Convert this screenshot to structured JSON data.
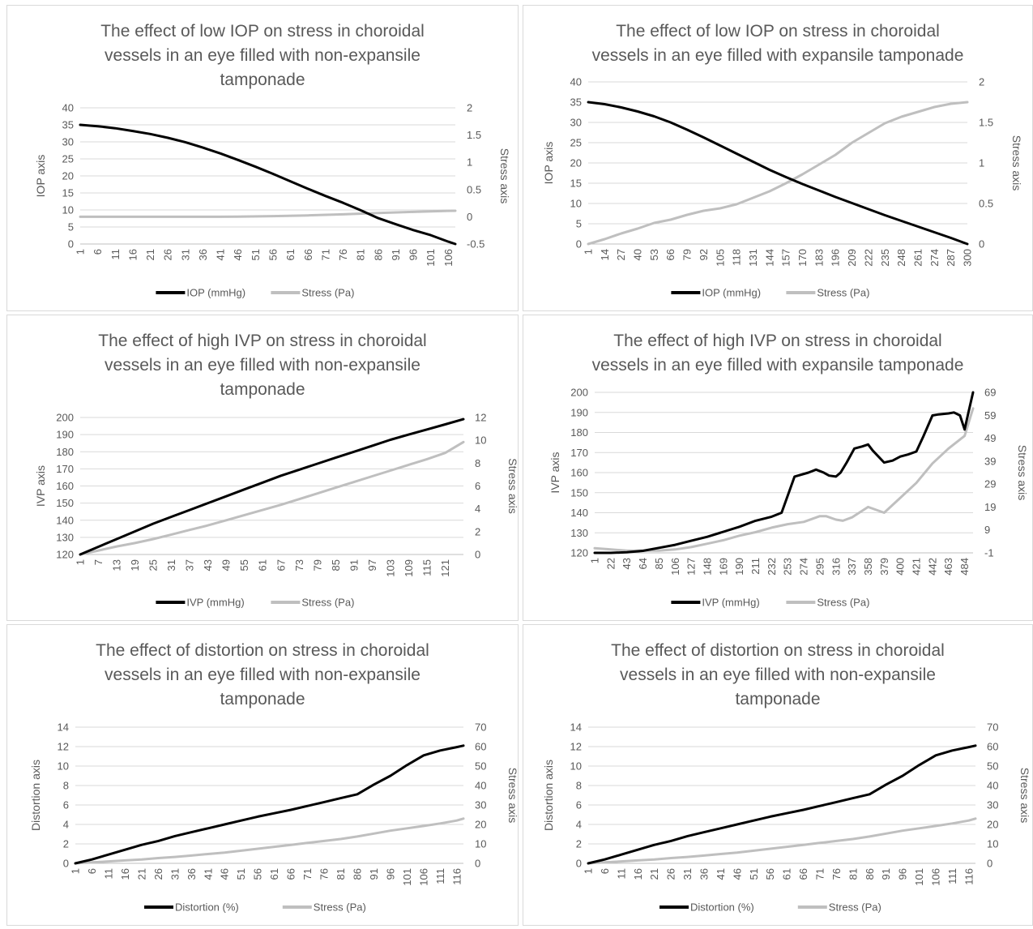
{
  "colors": {
    "series1": "#000000",
    "series2": "#bfbfbf",
    "text": "#595959",
    "grid": "#d9d9d9"
  },
  "chart_data": [
    {
      "type": "line",
      "title": [
        "The effect of low IOP on stress in choroidal",
        "vessels in an eye filled with non-expansile",
        "tamponade"
      ],
      "ylabel": "IOP axis",
      "y2label": "Stress axis",
      "ylim": [
        0,
        40
      ],
      "yticks": [
        "0",
        "5",
        "10",
        "15",
        "20",
        "25",
        "30",
        "35",
        "40"
      ],
      "y2lim": [
        -0.5,
        2
      ],
      "y2ticks": [
        "-0.5",
        "0",
        "0.5",
        "1",
        "1.5",
        "2"
      ],
      "xlim": [
        1,
        108
      ],
      "xticks": [
        "1",
        "6",
        "11",
        "16",
        "21",
        "26",
        "31",
        "36",
        "41",
        "46",
        "51",
        "56",
        "61",
        "66",
        "71",
        "76",
        "81",
        "86",
        "91",
        "96",
        "101",
        "106"
      ],
      "grid": true,
      "legend": "bottom",
      "series": [
        {
          "name": "IOP (mmHg)",
          "axis": "left",
          "x": [
            1,
            6,
            11,
            16,
            21,
            26,
            31,
            36,
            41,
            46,
            51,
            56,
            61,
            66,
            71,
            76,
            81,
            86,
            91,
            96,
            101,
            106,
            108
          ],
          "y": [
            35,
            34.6,
            34,
            33.2,
            32.3,
            31.2,
            29.9,
            28.3,
            26.6,
            24.7,
            22.7,
            20.6,
            18.4,
            16.2,
            14.1,
            12.1,
            9.9,
            7.6,
            5.8,
            4.1,
            2.6,
            0.7,
            0
          ]
        },
        {
          "name": "Stress (Pa)",
          "axis": "right",
          "x": [
            1,
            21,
            41,
            46,
            56,
            66,
            76,
            86,
            96,
            106,
            108
          ],
          "y": [
            0,
            0,
            0,
            0.003,
            0.012,
            0.025,
            0.045,
            0.07,
            0.09,
            0.108,
            0.11
          ]
        }
      ]
    },
    {
      "type": "line",
      "title": [
        "The effect of low IOP on stress in choroidal",
        "vessels in an eye filled with expansile tamponade"
      ],
      "ylabel": "IOP axis",
      "y2label": "Stress axis",
      "ylim": [
        0,
        40
      ],
      "yticks": [
        "0",
        "5",
        "10",
        "15",
        "20",
        "25",
        "30",
        "35",
        "40"
      ],
      "y2lim": [
        0,
        2
      ],
      "y2ticks": [
        "0",
        "0.5",
        "1",
        "1.5",
        "2"
      ],
      "xlim": [
        1,
        300
      ],
      "xticks": [
        "1",
        "14",
        "27",
        "40",
        "53",
        "66",
        "79",
        "92",
        "105",
        "118",
        "131",
        "144",
        "157",
        "170",
        "183",
        "196",
        "209",
        "222",
        "235",
        "248",
        "261",
        "274",
        "287",
        "300"
      ],
      "grid": true,
      "legend": "bottom",
      "series": [
        {
          "name": "IOP (mmHg)",
          "axis": "left",
          "x": [
            1,
            14,
            27,
            40,
            53,
            66,
            79,
            92,
            105,
            118,
            131,
            144,
            157,
            170,
            183,
            196,
            209,
            222,
            235,
            248,
            261,
            274,
            287,
            300
          ],
          "y": [
            35,
            34.5,
            33.7,
            32.7,
            31.5,
            30,
            28.2,
            26.3,
            24.3,
            22.3,
            20.3,
            18.3,
            16.5,
            14.8,
            13.2,
            11.6,
            10.1,
            8.6,
            7.1,
            5.7,
            4.3,
            2.9,
            1.5,
            0
          ]
        },
        {
          "name": "Stress (Pa)",
          "axis": "right",
          "x": [
            1,
            14,
            27,
            40,
            53,
            66,
            79,
            92,
            105,
            118,
            131,
            144,
            157,
            170,
            183,
            196,
            209,
            222,
            235,
            248,
            261,
            274,
            287,
            300
          ],
          "y": [
            0,
            0.06,
            0.13,
            0.19,
            0.26,
            0.3,
            0.36,
            0.41,
            0.44,
            0.49,
            0.57,
            0.65,
            0.75,
            0.86,
            0.98,
            1.1,
            1.25,
            1.37,
            1.49,
            1.57,
            1.63,
            1.69,
            1.73,
            1.75
          ]
        }
      ]
    },
    {
      "type": "line",
      "title": [
        "The effect of high IVP on stress in choroidal",
        "vessels in an eye filled with non-expansile",
        "tamponade"
      ],
      "ylabel": "IVP axis",
      "y2label": "Stress axis",
      "ylim": [
        120,
        200
      ],
      "yticks": [
        "120",
        "130",
        "140",
        "150",
        "160",
        "170",
        "180",
        "190",
        "200"
      ],
      "y2lim": [
        0,
        12
      ],
      "y2ticks": [
        "0",
        "2",
        "4",
        "6",
        "8",
        "10",
        "12"
      ],
      "xlim": [
        1,
        127
      ],
      "xticks": [
        "1",
        "7",
        "13",
        "19",
        "25",
        "31",
        "37",
        "43",
        "49",
        "55",
        "61",
        "67",
        "73",
        "79",
        "85",
        "91",
        "97",
        "103",
        "109",
        "115",
        "121"
      ],
      "grid": true,
      "legend": "bottom",
      "series": [
        {
          "name": "IVP (mmHg)",
          "axis": "left",
          "x": [
            1,
            7,
            13,
            19,
            25,
            31,
            37,
            43,
            49,
            55,
            61,
            67,
            73,
            79,
            85,
            91,
            97,
            103,
            109,
            115,
            121,
            127
          ],
          "y": [
            120,
            124.5,
            129,
            133.5,
            138,
            142,
            146,
            150,
            154,
            158,
            162,
            166,
            169.5,
            173,
            176.5,
            180,
            183.5,
            187,
            190,
            193,
            196,
            199
          ]
        },
        {
          "name": "Stress (Pa)",
          "axis": "right",
          "x": [
            1,
            7,
            13,
            19,
            25,
            31,
            37,
            43,
            49,
            55,
            61,
            67,
            73,
            79,
            85,
            91,
            97,
            103,
            109,
            115,
            121,
            127
          ],
          "y": [
            0,
            0.35,
            0.7,
            1,
            1.35,
            1.75,
            2.15,
            2.55,
            3,
            3.45,
            3.9,
            4.35,
            4.85,
            5.35,
            5.85,
            6.35,
            6.85,
            7.35,
            7.85,
            8.35,
            8.9,
            9.85
          ]
        }
      ]
    },
    {
      "type": "line",
      "title": [
        "The effect of high IVP on stress in choroidal",
        "vessels in an eye filled with expansile tamponade"
      ],
      "ylabel": "IVP axis",
      "y2label": "Stress axis",
      "ylim": [
        120,
        200
      ],
      "yticks": [
        "120",
        "130",
        "140",
        "150",
        "160",
        "170",
        "180",
        "190",
        "200"
      ],
      "y2lim": [
        -1,
        69
      ],
      "y2ticks": [
        "-1",
        "9",
        "19",
        "29",
        "39",
        "49",
        "59",
        "69"
      ],
      "xlim": [
        1,
        495
      ],
      "xticks": [
        "1",
        "22",
        "43",
        "64",
        "85",
        "106",
        "127",
        "148",
        "169",
        "190",
        "211",
        "232",
        "253",
        "274",
        "295",
        "316",
        "337",
        "358",
        "379",
        "400",
        "421",
        "442",
        "463",
        "484"
      ],
      "grid": true,
      "legend": "bottom",
      "series": [
        {
          "name": "IVP (mmHg)",
          "axis": "left",
          "x": [
            1,
            22,
            43,
            64,
            85,
            106,
            127,
            148,
            169,
            190,
            211,
            232,
            245,
            262,
            280,
            290,
            300,
            307,
            316,
            322,
            330,
            340,
            350,
            358,
            364,
            379,
            390,
            400,
            410,
            421,
            430,
            442,
            450,
            463,
            470,
            478,
            484,
            489,
            495
          ],
          "y": [
            120,
            120,
            120.3,
            121,
            122.5,
            124,
            126,
            128,
            130.5,
            133,
            136,
            138,
            140,
            158,
            160,
            161.5,
            160,
            158.5,
            158,
            160,
            165,
            172,
            173,
            174,
            171,
            165,
            166,
            168,
            169,
            170.5,
            178,
            188.5,
            189,
            189.5,
            190,
            188.5,
            181.5,
            190,
            200
          ]
        },
        {
          "name": "Stress (Pa)",
          "axis": "right",
          "x": [
            1,
            22,
            43,
            64,
            85,
            106,
            127,
            148,
            169,
            190,
            211,
            232,
            253,
            274,
            295,
            303,
            316,
            325,
            337,
            358,
            379,
            400,
            421,
            442,
            463,
            484,
            495
          ],
          "y": [
            1,
            0.5,
            0,
            0,
            0,
            0.5,
            1.5,
            3,
            4.5,
            6.5,
            8,
            10,
            11.5,
            12.5,
            15,
            15,
            13.5,
            13,
            14.5,
            19,
            16.5,
            23,
            29.5,
            38,
            44.5,
            50,
            62
          ]
        }
      ]
    },
    {
      "type": "line",
      "title": [
        "The effect of distortion on stress in choroidal",
        "vessels in an eye filled with non-expansile",
        "tamponade"
      ],
      "ylabel": "Distortion axis",
      "y2label": "Stress axis",
      "ylim": [
        0,
        14
      ],
      "yticks": [
        "0",
        "2",
        "4",
        "6",
        "8",
        "10",
        "12",
        "14"
      ],
      "y2lim": [
        0,
        70
      ],
      "y2ticks": [
        "0",
        "10",
        "20",
        "30",
        "40",
        "50",
        "60",
        "70"
      ],
      "xlim": [
        1,
        118
      ],
      "xticks": [
        "1",
        "6",
        "11",
        "16",
        "21",
        "26",
        "31",
        "36",
        "41",
        "46",
        "51",
        "56",
        "61",
        "66",
        "71",
        "76",
        "81",
        "86",
        "91",
        "96",
        "101",
        "106",
        "111",
        "116"
      ],
      "grid": true,
      "legend": "bottom",
      "series": [
        {
          "name": "Distortion (%)",
          "axis": "left",
          "x": [
            1,
            6,
            11,
            16,
            21,
            26,
            31,
            36,
            41,
            46,
            51,
            56,
            61,
            66,
            71,
            76,
            81,
            86,
            91,
            96,
            101,
            106,
            111,
            116,
            118
          ],
          "y": [
            0,
            0.4,
            0.9,
            1.4,
            1.9,
            2.3,
            2.8,
            3.2,
            3.6,
            4.0,
            4.4,
            4.8,
            5.15,
            5.5,
            5.9,
            6.3,
            6.7,
            7.1,
            8.1,
            9.0,
            10.1,
            11.1,
            11.6,
            11.95,
            12.1
          ]
        },
        {
          "name": "Stress (Pa)",
          "axis": "right",
          "x": [
            1,
            6,
            11,
            16,
            21,
            26,
            31,
            36,
            41,
            46,
            51,
            56,
            61,
            66,
            71,
            76,
            81,
            86,
            91,
            96,
            101,
            106,
            111,
            116,
            118
          ],
          "y": [
            0,
            0.5,
            1,
            1.5,
            2,
            2.7,
            3.3,
            4,
            4.8,
            5.5,
            6.5,
            7.5,
            8.5,
            9.5,
            10.5,
            11.5,
            12.5,
            13.8,
            15.3,
            16.8,
            18,
            19.2,
            20.5,
            22,
            23
          ]
        }
      ]
    },
    {
      "type": "line",
      "title": [
        "The effect of distortion on stress in choroidal",
        "vessels in an eye filled with non-expansile",
        "tamponade"
      ],
      "ylabel": "Distortion axis",
      "y2label": "Stress axis",
      "ylim": [
        0,
        14
      ],
      "yticks": [
        "0",
        "2",
        "4",
        "6",
        "8",
        "10",
        "12",
        "14"
      ],
      "y2lim": [
        0,
        70
      ],
      "y2ticks": [
        "0",
        "10",
        "20",
        "30",
        "40",
        "50",
        "60",
        "70"
      ],
      "xlim": [
        1,
        118
      ],
      "xticks": [
        "1",
        "6",
        "11",
        "16",
        "21",
        "26",
        "31",
        "36",
        "41",
        "46",
        "51",
        "56",
        "61",
        "66",
        "71",
        "76",
        "81",
        "86",
        "91",
        "96",
        "101",
        "106",
        "111",
        "116"
      ],
      "grid": true,
      "legend": "bottom",
      "series": [
        {
          "name": "Distortion (%)",
          "axis": "left",
          "x": [
            1,
            6,
            11,
            16,
            21,
            26,
            31,
            36,
            41,
            46,
            51,
            56,
            61,
            66,
            71,
            76,
            81,
            86,
            91,
            96,
            101,
            106,
            111,
            116,
            118
          ],
          "y": [
            0,
            0.4,
            0.9,
            1.4,
            1.9,
            2.3,
            2.8,
            3.2,
            3.6,
            4.0,
            4.4,
            4.8,
            5.15,
            5.5,
            5.9,
            6.3,
            6.7,
            7.1,
            8.1,
            9.0,
            10.1,
            11.1,
            11.6,
            11.95,
            12.1
          ]
        },
        {
          "name": "Stress (Pa)",
          "axis": "right",
          "x": [
            1,
            6,
            11,
            16,
            21,
            26,
            31,
            36,
            41,
            46,
            51,
            56,
            61,
            66,
            71,
            76,
            81,
            86,
            91,
            96,
            101,
            106,
            111,
            116,
            118
          ],
          "y": [
            0,
            0.5,
            1,
            1.5,
            2,
            2.7,
            3.3,
            4,
            4.8,
            5.5,
            6.5,
            7.5,
            8.5,
            9.5,
            10.5,
            11.5,
            12.5,
            13.8,
            15.3,
            16.8,
            18,
            19.2,
            20.5,
            22,
            23
          ]
        }
      ]
    }
  ]
}
